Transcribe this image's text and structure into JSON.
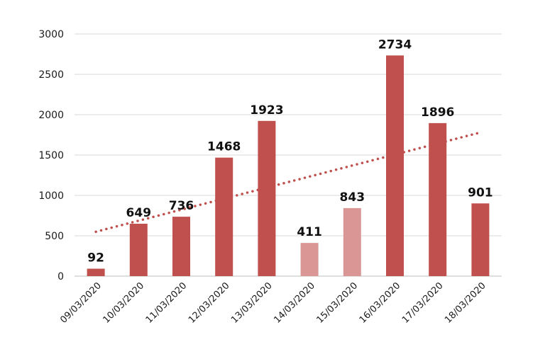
{
  "chart_data": {
    "type": "bar",
    "categories": [
      "09/03/2020",
      "10/03/2020",
      "11/03/2020",
      "12/03/2020",
      "13/03/2020",
      "14/03/2020",
      "15/03/2020",
      "16/03/2020",
      "17/03/2020",
      "18/03/2020"
    ],
    "values": [
      92,
      649,
      736,
      1468,
      1923,
      411,
      843,
      2734,
      1896,
      901
    ],
    "highlight": [
      false,
      false,
      false,
      false,
      false,
      true,
      true,
      false,
      false,
      false
    ],
    "yticks": [
      0,
      500,
      1000,
      1500,
      2000,
      2500,
      3000
    ],
    "ylim": [
      0,
      3000
    ],
    "grid": true,
    "legend": "none",
    "trendline": {
      "type": "linear",
      "style": "dotted",
      "start": 550,
      "end": 1780
    },
    "colors": {
      "bar": "#c0504d",
      "bar_highlight": "#d99694",
      "trendline": "#c0504d",
      "grid": "#d9d9d9",
      "axis": "#bfbfbf"
    }
  }
}
